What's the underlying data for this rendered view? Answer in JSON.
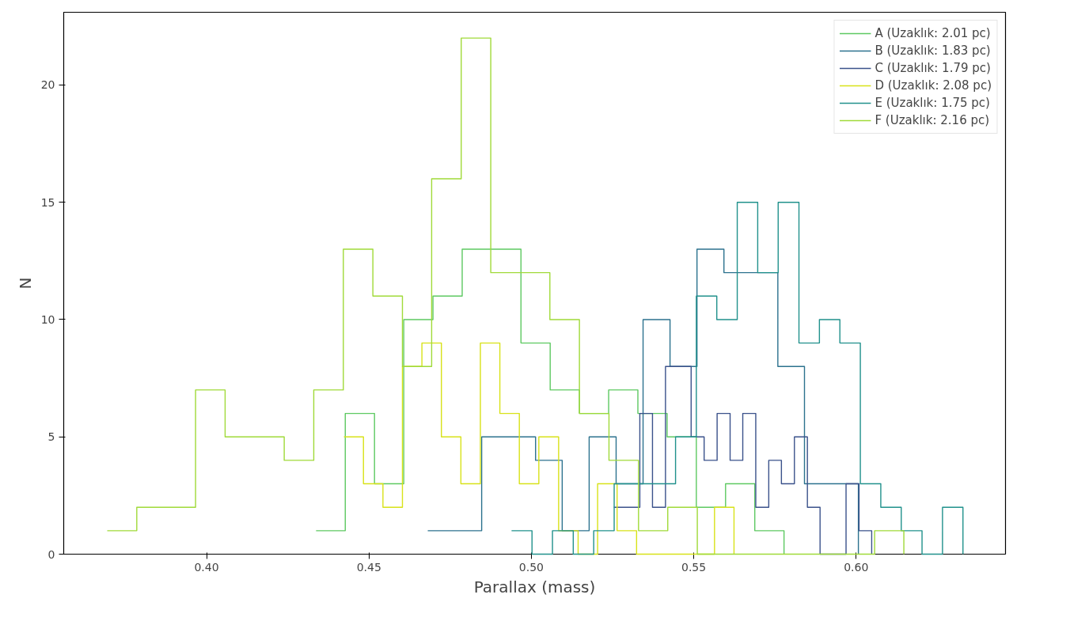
{
  "chart_data": {
    "type": "step",
    "xlabel": "Parallax (mass)",
    "ylabel": "N",
    "xlim": [
      0.356,
      0.646
    ],
    "ylim": [
      0,
      23.1
    ],
    "xticks": [
      {
        "value": 0.4,
        "label": "0.40"
      },
      {
        "value": 0.45,
        "label": "0.45"
      },
      {
        "value": 0.5,
        "label": "0.50"
      },
      {
        "value": 0.55,
        "label": "0.55"
      },
      {
        "value": 0.6,
        "label": "0.60"
      }
    ],
    "yticks": [
      0,
      5,
      10,
      15,
      20
    ],
    "grid": false,
    "legend": "top right",
    "marker": "none",
    "series": [
      {
        "name": "A (Uzaklık: 2.01 pc)",
        "color": "#5ec962",
        "x": [
          0.4337,
          0.4427,
          0.4517,
          0.4607,
          0.4697,
          0.4787,
          0.4877,
          0.4968,
          0.5058,
          0.5148,
          0.5238,
          0.5328,
          0.5418,
          0.5508,
          0.5598,
          0.5688,
          0.5778
        ],
        "values": [
          1,
          6,
          3,
          10,
          11,
          13,
          13,
          9,
          7,
          6,
          7,
          6,
          5,
          2,
          3,
          1,
          0
        ]
      },
      {
        "name": "B (Uzaklık: 1.83 pc)",
        "color": "#2c728e",
        "x": [
          0.4681,
          0.4764,
          0.4847,
          0.493,
          0.5013,
          0.5095,
          0.5178,
          0.5261,
          0.5344,
          0.5427,
          0.551,
          0.5593,
          0.5676,
          0.5759,
          0.5841,
          0.5924,
          0.6007
        ],
        "values": [
          1,
          1,
          5,
          5,
          4,
          1,
          5,
          3,
          10,
          8,
          13,
          12,
          12,
          8,
          3,
          3,
          0
        ]
      },
      {
        "name": "C (Uzaklık: 1.79 pc)",
        "color": "#3b528b",
        "x": [
          0.5254,
          0.5294,
          0.5334,
          0.5373,
          0.5413,
          0.5453,
          0.5492,
          0.5532,
          0.5572,
          0.5612,
          0.5651,
          0.5691,
          0.5731,
          0.577,
          0.581,
          0.585,
          0.5889,
          0.5929,
          0.5969,
          0.6009,
          0.6048
        ],
        "values": [
          2,
          2,
          6,
          2,
          8,
          8,
          5,
          4,
          6,
          4,
          6,
          2,
          4,
          3,
          5,
          2,
          0,
          0,
          3,
          1,
          0
        ]
      },
      {
        "name": "D (Uzaklık: 2.08 pc)",
        "color": "#d8e219",
        "x": [
          0.4423,
          0.4483,
          0.4543,
          0.4603,
          0.4663,
          0.4723,
          0.4783,
          0.4843,
          0.4903,
          0.4963,
          0.5023,
          0.5084,
          0.5144,
          0.5204,
          0.5264,
          0.5324,
          0.5384,
          0.5444,
          0.5504,
          0.5564,
          0.5624
        ],
        "values": [
          5,
          3,
          2,
          8,
          9,
          5,
          3,
          9,
          6,
          3,
          5,
          1,
          0,
          3,
          1,
          0,
          0,
          0,
          0,
          2,
          0
        ]
      },
      {
        "name": "E (Uzaklık: 1.75 pc)",
        "color": "#21918c",
        "x": [
          0.4939,
          0.5002,
          0.5065,
          0.5129,
          0.5192,
          0.5255,
          0.5318,
          0.5381,
          0.5444,
          0.5508,
          0.5571,
          0.5634,
          0.5697,
          0.576,
          0.5824,
          0.5887,
          0.595,
          0.6013,
          0.6076,
          0.6139,
          0.6203,
          0.6266,
          0.6329
        ],
        "values": [
          1,
          0,
          1,
          0,
          1,
          3,
          3,
          3,
          5,
          11,
          10,
          15,
          12,
          15,
          9,
          10,
          9,
          3,
          2,
          1,
          0,
          2,
          0
        ]
      },
      {
        "name": "F (Uzaklık: 2.16 pc)",
        "color": "#a0da39",
        "x": [
          0.3694,
          0.3785,
          0.3876,
          0.3966,
          0.4057,
          0.4148,
          0.4239,
          0.433,
          0.4421,
          0.4512,
          0.4603,
          0.4693,
          0.4784,
          0.4875,
          0.4966,
          0.5057,
          0.5148,
          0.5239,
          0.533,
          0.542,
          0.5511,
          0.5602,
          0.5693,
          0.5784,
          0.5875,
          0.5966,
          0.6057,
          0.6147
        ],
        "values": [
          1,
          2,
          2,
          7,
          5,
          5,
          4,
          7,
          13,
          11,
          8,
          16,
          22,
          12,
          12,
          10,
          6,
          4,
          1,
          2,
          0,
          0,
          0,
          0,
          0,
          0,
          1,
          0
        ]
      }
    ]
  }
}
